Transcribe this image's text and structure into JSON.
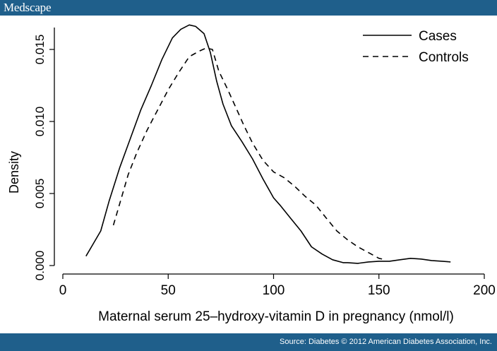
{
  "header": {
    "brand": "Medscape"
  },
  "footer": {
    "source": "Source: Diabetes © 2012 American Diabetes Association, Inc."
  },
  "chart_data": {
    "type": "line",
    "title": "",
    "xlabel": "Maternal serum 25–hydroxy-vitamin D in pregnancy (nmol/l)",
    "ylabel": "Density",
    "xlim": [
      0,
      200
    ],
    "ylim": [
      0,
      0.0165
    ],
    "x_ticks": [
      0,
      50,
      100,
      150,
      200
    ],
    "x_tick_labels": [
      "0",
      "50",
      "100",
      "150",
      "200"
    ],
    "y_ticks": [
      0,
      0.005,
      0.01,
      0.015
    ],
    "y_tick_labels": [
      "0.000",
      "0.005",
      "0.010",
      "0.015"
    ],
    "grid": false,
    "legend": {
      "position": "top-right"
    },
    "series": [
      {
        "name": "Cases",
        "style": "solid",
        "x": [
          11,
          14,
          18,
          22,
          27,
          32,
          37,
          42,
          47,
          52,
          56,
          60,
          63,
          67,
          70,
          73,
          76,
          80,
          85,
          90,
          95,
          100,
          103,
          108,
          113,
          118,
          123,
          128,
          133,
          135,
          140,
          145,
          150,
          155,
          160,
          165,
          170,
          175,
          180,
          184
        ],
        "y": [
          0.00065,
          0.0014,
          0.0024,
          0.0045,
          0.0068,
          0.0088,
          0.0108,
          0.0125,
          0.0143,
          0.0158,
          0.0164,
          0.0167,
          0.0166,
          0.0161,
          0.0148,
          0.0128,
          0.0112,
          0.0097,
          0.0086,
          0.0074,
          0.006,
          0.0047,
          0.0042,
          0.0033,
          0.0024,
          0.0013,
          0.0008,
          0.0004,
          0.0002,
          0.0002,
          0.00015,
          0.00025,
          0.0003,
          0.0003,
          0.0004,
          0.0005,
          0.00045,
          0.00035,
          0.0003,
          0.00025
        ]
      },
      {
        "name": "Controls",
        "style": "dashed",
        "x": [
          24,
          27,
          31,
          35,
          40,
          45,
          50,
          55,
          60,
          65,
          68,
          71,
          74,
          78,
          82,
          86,
          90,
          95,
          100,
          105,
          110,
          115,
          120,
          125,
          130,
          135,
          140,
          145,
          150,
          153
        ],
        "y": [
          0.0028,
          0.0043,
          0.0063,
          0.0078,
          0.0094,
          0.0108,
          0.0122,
          0.0134,
          0.0145,
          0.0149,
          0.0151,
          0.015,
          0.0135,
          0.0123,
          0.011,
          0.0097,
          0.0085,
          0.0073,
          0.0065,
          0.0061,
          0.0055,
          0.0048,
          0.0042,
          0.0033,
          0.0024,
          0.0018,
          0.0013,
          0.0009,
          0.0005,
          0.0004
        ]
      }
    ]
  }
}
